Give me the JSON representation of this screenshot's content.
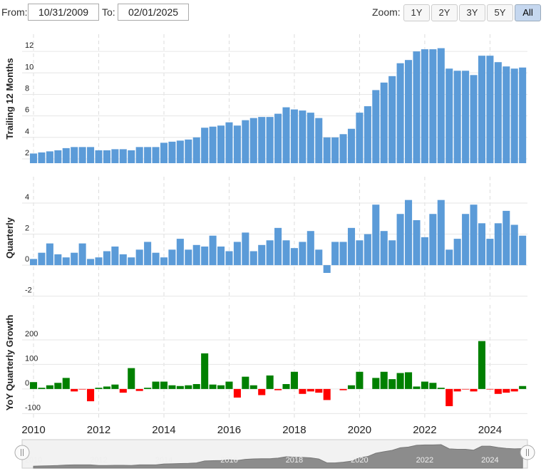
{
  "controls": {
    "from_label": "From:",
    "from": "10/31/2009",
    "to_label": "To:",
    "to": "02/01/2025",
    "zoom_label": "Zoom:",
    "zoom": [
      "1Y",
      "2Y",
      "3Y",
      "5Y",
      "All"
    ],
    "active_zoom": "All"
  },
  "chart_data": [
    {
      "type": "bar",
      "ylabel": "Trailing 12 Months",
      "color": "#5b9bd8",
      "grid": true,
      "x": [
        2010,
        2010.25,
        2010.5,
        2010.75,
        2011,
        2011.25,
        2011.5,
        2011.75,
        2012,
        2012.25,
        2012.5,
        2012.75,
        2013,
        2013.25,
        2013.5,
        2013.75,
        2014,
        2014.25,
        2014.5,
        2014.75,
        2015,
        2015.25,
        2015.5,
        2015.75,
        2016,
        2016.25,
        2016.5,
        2016.75,
        2017,
        2017.25,
        2017.5,
        2017.75,
        2018,
        2018.25,
        2018.5,
        2018.75,
        2019,
        2019.25,
        2019.5,
        2019.75,
        2020,
        2020.25,
        2020.5,
        2020.75,
        2021,
        2021.25,
        2021.5,
        2021.75,
        2022,
        2022.25,
        2022.5,
        2022.75,
        2023,
        2023.25,
        2023.5,
        2023.75,
        2024,
        2024.25,
        2024.5,
        2024.75,
        2025
      ],
      "xlim": [
        2009.65,
        2025.15
      ],
      "xticks": [
        2010,
        2012,
        2014,
        2016,
        2018,
        2020,
        2022,
        2024
      ],
      "values": [
        2.5,
        2.6,
        2.7,
        2.8,
        3.0,
        3.1,
        3.1,
        3.1,
        2.8,
        2.8,
        2.9,
        2.9,
        2.8,
        3.1,
        3.1,
        3.1,
        3.5,
        3.6,
        3.7,
        3.8,
        4.0,
        4.9,
        5.0,
        5.1,
        5.4,
        5.1,
        5.6,
        5.8,
        5.9,
        5.9,
        6.2,
        6.8,
        6.6,
        6.5,
        6.3,
        5.8,
        4.0,
        4.0,
        4.3,
        4.8,
        6.3,
        6.9,
        8.4,
        9.1,
        9.7,
        10.9,
        11.2,
        12.0,
        12.2,
        12.2,
        12.3,
        10.4,
        10.2,
        10.2,
        9.8,
        11.6,
        11.6,
        11.0,
        10.6,
        10.4,
        10.5
      ],
      "ylim": [
        1.6,
        13.6
      ],
      "yticks": [
        2,
        4,
        6,
        8,
        10,
        12
      ]
    },
    {
      "type": "bar",
      "ylabel": "Quarterly",
      "color": "#5b9bd8",
      "grid": true,
      "values": [
        0.4,
        0.8,
        1.4,
        0.7,
        0.5,
        0.8,
        1.4,
        0.4,
        0.5,
        0.9,
        1.2,
        0.7,
        0.5,
        1.0,
        1.5,
        0.8,
        0.5,
        1.0,
        1.7,
        1.0,
        1.3,
        1.2,
        1.9,
        1.2,
        0.9,
        1.5,
        2.1,
        0.9,
        1.3,
        1.6,
        2.4,
        1.6,
        1.1,
        1.5,
        2.2,
        1.0,
        -0.5,
        1.5,
        1.5,
        2.4,
        1.6,
        2.0,
        3.9,
        2.2,
        1.6,
        3.3,
        4.2,
        2.9,
        1.8,
        3.3,
        4.2,
        1.0,
        1.7,
        3.3,
        3.9,
        2.7,
        1.7,
        2.7,
        3.5,
        2.6,
        1.9
      ],
      "ylim": [
        -2.2,
        5.7
      ],
      "yticks": [
        -2,
        0,
        2,
        4
      ]
    },
    {
      "type": "bar",
      "ylabel": "YoY Quarterly Growth",
      "color": "#008000",
      "negative_color": "#ff0000",
      "grid": true,
      "values": [
        28,
        5,
        15,
        25,
        45,
        -10,
        -2,
        -50,
        5,
        10,
        18,
        -15,
        85,
        -8,
        5,
        30,
        30,
        15,
        12,
        15,
        20,
        145,
        18,
        15,
        30,
        -35,
        50,
        15,
        -25,
        55,
        -5,
        20,
        70,
        -20,
        -10,
        -15,
        -45,
        0,
        -5,
        15,
        70,
        0,
        45,
        70,
        40,
        65,
        68,
        10,
        30,
        25,
        5,
        -70,
        -10,
        -2,
        -10,
        195,
        -2,
        -20,
        -15,
        -10,
        12
      ],
      "ylim": [
        -128,
        342
      ],
      "yticks": [
        -100,
        0,
        100,
        200
      ]
    }
  ]
}
